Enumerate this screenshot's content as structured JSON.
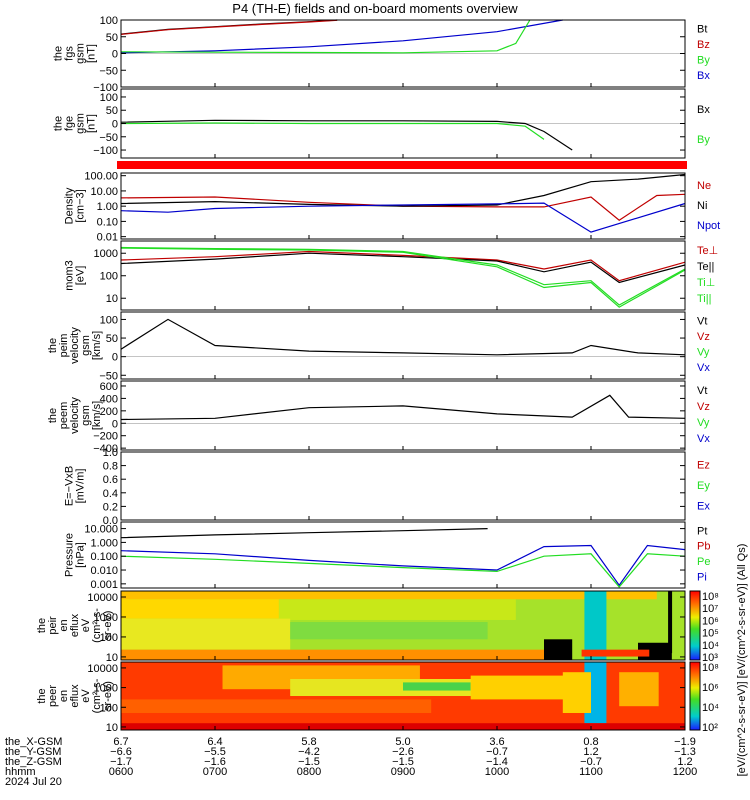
{
  "title": "P4 (TH-E) fields and on-board moments overview",
  "colors": {
    "black": "#000000",
    "red": "#c00000",
    "green": "#22dd22",
    "blue": "#0000cc",
    "bar_red": "#ff0000"
  },
  "panels": [
    {
      "id": "fgs",
      "ylabel": [
        "the",
        "fgs",
        "gsm",
        "[nT]"
      ],
      "ticks": [
        "100",
        "50",
        "0",
        "−50",
        "−100"
      ],
      "tickvals": [
        100,
        50,
        0,
        -50,
        -100
      ],
      "ylim": [
        -100,
        100
      ],
      "legend": [
        {
          "label": "Bt",
          "color": "black"
        },
        {
          "label": "Bz",
          "color": "red"
        },
        {
          "label": "By",
          "color": "green"
        },
        {
          "label": "Bx",
          "color": "blue"
        }
      ]
    },
    {
      "id": "fge",
      "ylabel": [
        "the",
        "fge",
        "gsm",
        "[nT]"
      ],
      "ticks": [
        "100",
        "50",
        "0",
        "−50",
        "−100"
      ],
      "tickvals": [
        100,
        50,
        0,
        -50,
        -100
      ],
      "ylim": [
        -130,
        130
      ],
      "legend": [
        {
          "label": "Bx",
          "color": "black"
        },
        {
          "label": "By",
          "color": "green"
        }
      ]
    },
    {
      "id": "density",
      "ylabel": [
        "Density",
        "[cm−3]"
      ],
      "ticks": [
        "100.00",
        "10.00",
        "1.00",
        "0.10",
        "0.01"
      ],
      "tickvals": [
        100,
        10,
        1,
        0.1,
        0.01
      ],
      "ylim": [
        0.007,
        150
      ],
      "log": true,
      "legend": [
        {
          "label": "Ne",
          "color": "red"
        },
        {
          "label": "Ni",
          "color": "black"
        },
        {
          "label": "Npot",
          "color": "blue"
        }
      ]
    },
    {
      "id": "temp",
      "ylabel": [
        "mom3",
        "[eV]"
      ],
      "ticks": [
        "1000",
        "100",
        "10"
      ],
      "tickvals": [
        1000,
        100,
        10
      ],
      "ylim": [
        3,
        3500
      ],
      "log": true,
      "legend": [
        {
          "label": "Te⊥",
          "color": "red"
        },
        {
          "label": "Te||",
          "color": "black"
        },
        {
          "label": "Ti⊥",
          "color": "green"
        },
        {
          "label": "Ti||",
          "color": "green"
        }
      ]
    },
    {
      "id": "peim",
      "ylabel": [
        "the",
        "peim",
        "velocity",
        "gsm",
        "[km/s]"
      ],
      "ticks": [
        "100",
        "50",
        "0",
        "−50"
      ],
      "tickvals": [
        100,
        50,
        0,
        -50
      ],
      "ylim": [
        -60,
        120
      ],
      "legend": [
        {
          "label": "Vt",
          "color": "black"
        },
        {
          "label": "Vz",
          "color": "red"
        },
        {
          "label": "Vy",
          "color": "green"
        },
        {
          "label": "Vx",
          "color": "blue"
        }
      ]
    },
    {
      "id": "peem",
      "ylabel": [
        "the",
        "peem",
        "velocity",
        "gsm",
        "[km/s]"
      ],
      "ticks": [
        "600",
        "400",
        "200",
        "0",
        "−200",
        "−400"
      ],
      "tickvals": [
        600,
        400,
        200,
        0,
        -200,
        -400
      ],
      "ylim": [
        -430,
        680
      ],
      "legend": [
        {
          "label": "Vt",
          "color": "black"
        },
        {
          "label": "Vz",
          "color": "red"
        },
        {
          "label": "Vy",
          "color": "green"
        },
        {
          "label": "Vx",
          "color": "blue"
        }
      ]
    },
    {
      "id": "efield",
      "ylabel": [
        "E=−VxB",
        "[mV/m]"
      ],
      "ticks": [
        "1.0",
        "0.8",
        "0.6",
        "0.4",
        "0.2",
        "0.0"
      ],
      "tickvals": [
        1.0,
        0.8,
        0.6,
        0.4,
        0.2,
        0.0
      ],
      "ylim": [
        0,
        1
      ],
      "legend": [
        {
          "label": "Ez",
          "color": "red"
        },
        {
          "label": "Ey",
          "color": "green"
        },
        {
          "label": "Ex",
          "color": "blue"
        }
      ]
    },
    {
      "id": "pressure",
      "ylabel": [
        "Pressure",
        "[nPa]"
      ],
      "ticks": [
        "10.000",
        "1.000",
        "0.100",
        "0.010",
        "0.001"
      ],
      "tickvals": [
        10,
        1,
        0.1,
        0.01,
        0.001
      ],
      "ylim": [
        0.0005,
        30
      ],
      "log": true,
      "legend": [
        {
          "label": "Pt",
          "color": "black"
        },
        {
          "label": "Pb",
          "color": "red"
        },
        {
          "label": "Pe",
          "color": "green"
        },
        {
          "label": "Pi",
          "color": "blue"
        }
      ]
    },
    {
      "id": "peir",
      "ylabel": [
        "the",
        "peir",
        "en",
        "eflux",
        "eV",
        "(cm²-s-",
        "sr-eV)"
      ],
      "ticks": [
        "10000",
        "1000",
        "100",
        "10"
      ],
      "tickvals": [
        10000,
        1000,
        100,
        10
      ],
      "ylim": [
        7,
        20000
      ],
      "log": true,
      "spectrogram": true
    },
    {
      "id": "peer",
      "ylabel": [
        "the",
        "peer",
        "en",
        "eflux",
        "eV",
        "(cm²-s-",
        "sr-eV)"
      ],
      "ticks": [
        "10000",
        "1000",
        "100",
        "10"
      ],
      "tickvals": [
        10000,
        1000,
        100,
        10
      ],
      "ylim": [
        7,
        20000
      ],
      "log": true,
      "spectrogram": true
    }
  ],
  "colorbar": {
    "ticks_top": [
      "10⁸",
      "10⁷",
      "10⁶",
      "10⁵",
      "10⁴",
      "10³"
    ],
    "ticks_bottom": [
      "10⁸",
      "10⁶",
      "10⁴",
      "10²"
    ],
    "label": "[eV/(cm^2-s-sr-eV)] [eV/(cm^2-s-sr-eV)] (All Qs)"
  },
  "footer": {
    "rows": [
      {
        "label": "the_X-GSM",
        "values": [
          "6.7",
          "6.4",
          "5.8",
          "5.0",
          "3.6",
          "0.8",
          "−1.9"
        ]
      },
      {
        "label": "the_Y-GSM",
        "values": [
          "−6.6",
          "−5.5",
          "−4.2",
          "−2.6",
          "−0.7",
          "1.2",
          "−1.3"
        ]
      },
      {
        "label": "the_Z-GSM",
        "values": [
          "−1.7",
          "−1.6",
          "−1.5",
          "−1.5",
          "−1.4",
          "−0.7",
          "1.2"
        ]
      },
      {
        "label": "hhmm",
        "values": [
          "0600",
          "0700",
          "0800",
          "0900",
          "1000",
          "1100",
          "1200"
        ]
      }
    ],
    "date": "2024 Jul 20"
  },
  "chart_data": {
    "type": "line",
    "title": "P4 (TH-E) fields and on-board moments overview",
    "x_label": "hhmm",
    "x_ticks": [
      "0600",
      "0700",
      "0800",
      "0900",
      "1000",
      "1100",
      "1200"
    ],
    "x_range_hours": [
      6,
      12
    ],
    "series": [
      {
        "panel": "fgs",
        "name": "Bt",
        "x": [
          6.0,
          6.5,
          7.0,
          7.5,
          8.0,
          8.3
        ],
        "y": [
          58,
          72,
          80,
          88,
          95,
          100
        ]
      },
      {
        "panel": "fgs",
        "name": "Bz",
        "x": [
          6.0,
          6.5,
          7.0,
          7.5,
          8.0,
          8.3
        ],
        "y": [
          57,
          71,
          79,
          87,
          94,
          99
        ]
      },
      {
        "panel": "fgs",
        "name": "Bx",
        "x": [
          6.0,
          7.0,
          8.0,
          9.0,
          10.0,
          10.7
        ],
        "y": [
          2,
          8,
          20,
          38,
          65,
          100
        ]
      },
      {
        "panel": "fgs",
        "name": "By",
        "x": [
          6.0,
          7.0,
          8.0,
          9.0,
          10.0,
          10.2,
          10.35
        ],
        "y": [
          5,
          4,
          3,
          2,
          8,
          30,
          100
        ]
      },
      {
        "panel": "fge",
        "name": "Bx",
        "x": [
          6.0,
          7.0,
          8.0,
          9.0,
          10.0,
          10.3,
          10.5,
          10.8
        ],
        "y": [
          5,
          12,
          10,
          10,
          8,
          0,
          -30,
          -100
        ]
      },
      {
        "panel": "fge",
        "name": "By",
        "x": [
          6.0,
          7.0,
          8.0,
          9.0,
          10.0,
          10.3,
          10.5
        ],
        "y": [
          0,
          2,
          0,
          0,
          0,
          -10,
          -60
        ]
      },
      {
        "panel": "density",
        "name": "Ne",
        "x": [
          6.0,
          7.0,
          8.0,
          9.0,
          10.0,
          10.5,
          11.0,
          11.3,
          11.7,
          12.0
        ],
        "y": [
          3.5,
          4,
          1.8,
          1.0,
          0.9,
          0.9,
          4,
          0.12,
          5,
          6
        ]
      },
      {
        "panel": "density",
        "name": "Ni",
        "x": [
          6.0,
          7.0,
          8.0,
          9.0,
          10.0,
          10.5,
          11.0,
          11.5,
          12.0
        ],
        "y": [
          1.5,
          2,
          1.3,
          1.0,
          1.2,
          5,
          40,
          60,
          120
        ]
      },
      {
        "panel": "density",
        "name": "Npot",
        "x": [
          6.0,
          6.5,
          7.0,
          8.0,
          9.0,
          10.0,
          10.5,
          11.0,
          12.0
        ],
        "y": [
          0.5,
          0.4,
          0.7,
          1.0,
          1.2,
          1.4,
          1.6,
          0.02,
          1.5
        ]
      },
      {
        "panel": "temp",
        "name": "Te⊥",
        "x": [
          6.0,
          7.0,
          8.0,
          9.0,
          10.0,
          10.5,
          11.0,
          11.3,
          12.0
        ],
        "y": [
          500,
          700,
          1200,
          800,
          500,
          200,
          500,
          60,
          400
        ]
      },
      {
        "panel": "temp",
        "name": "Te||",
        "x": [
          6.0,
          7.0,
          8.0,
          9.0,
          10.0,
          10.5,
          11.0,
          11.3,
          12.0
        ],
        "y": [
          350,
          550,
          1000,
          700,
          450,
          150,
          400,
          50,
          300
        ]
      },
      {
        "panel": "temp",
        "name": "Ti⊥",
        "x": [
          6.0,
          7.0,
          8.0,
          9.0,
          10.0,
          10.5,
          11.0,
          11.3,
          12.0
        ],
        "y": [
          1800,
          1600,
          1500,
          1200,
          300,
          40,
          60,
          5,
          200
        ]
      },
      {
        "panel": "temp",
        "name": "Ti||",
        "x": [
          6.0,
          7.0,
          8.0,
          9.0,
          10.0,
          10.5,
          11.0,
          11.3,
          12.0
        ],
        "y": [
          1700,
          1500,
          1400,
          1100,
          250,
          30,
          50,
          4,
          180
        ]
      },
      {
        "panel": "peim",
        "name": "Vt",
        "x": [
          6.0,
          6.5,
          7.0,
          8.0,
          9.0,
          10.0,
          10.8,
          11.0,
          11.5,
          12.0
        ],
        "y": [
          20,
          100,
          30,
          15,
          10,
          5,
          10,
          30,
          10,
          5
        ]
      },
      {
        "panel": "peem",
        "name": "Vt",
        "x": [
          6.0,
          7.0,
          8.0,
          9.0,
          10.0,
          10.8,
          11.2,
          11.4,
          12.0
        ],
        "y": [
          60,
          80,
          250,
          280,
          150,
          100,
          450,
          100,
          80
        ]
      },
      {
        "panel": "pressure",
        "name": "Pt",
        "x": [
          6.0,
          7.0,
          8.0,
          9.0,
          9.9
        ],
        "y": [
          2.2,
          3.5,
          5,
          7,
          10
        ]
      },
      {
        "panel": "pressure",
        "name": "Pi",
        "x": [
          6.0,
          7.0,
          8.0,
          9.0,
          10.0,
          10.5,
          11.0,
          11.3,
          11.6,
          12.0
        ],
        "y": [
          0.25,
          0.15,
          0.05,
          0.02,
          0.01,
          0.5,
          0.6,
          0.0008,
          0.6,
          0.3
        ]
      },
      {
        "panel": "pressure",
        "name": "Pe",
        "x": [
          6.0,
          7.0,
          8.0,
          9.0,
          10.0,
          10.5,
          11.0,
          11.3,
          11.6,
          12.0
        ],
        "y": [
          0.1,
          0.06,
          0.03,
          0.015,
          0.008,
          0.1,
          0.15,
          0.0006,
          0.15,
          0.1
        ]
      }
    ]
  }
}
